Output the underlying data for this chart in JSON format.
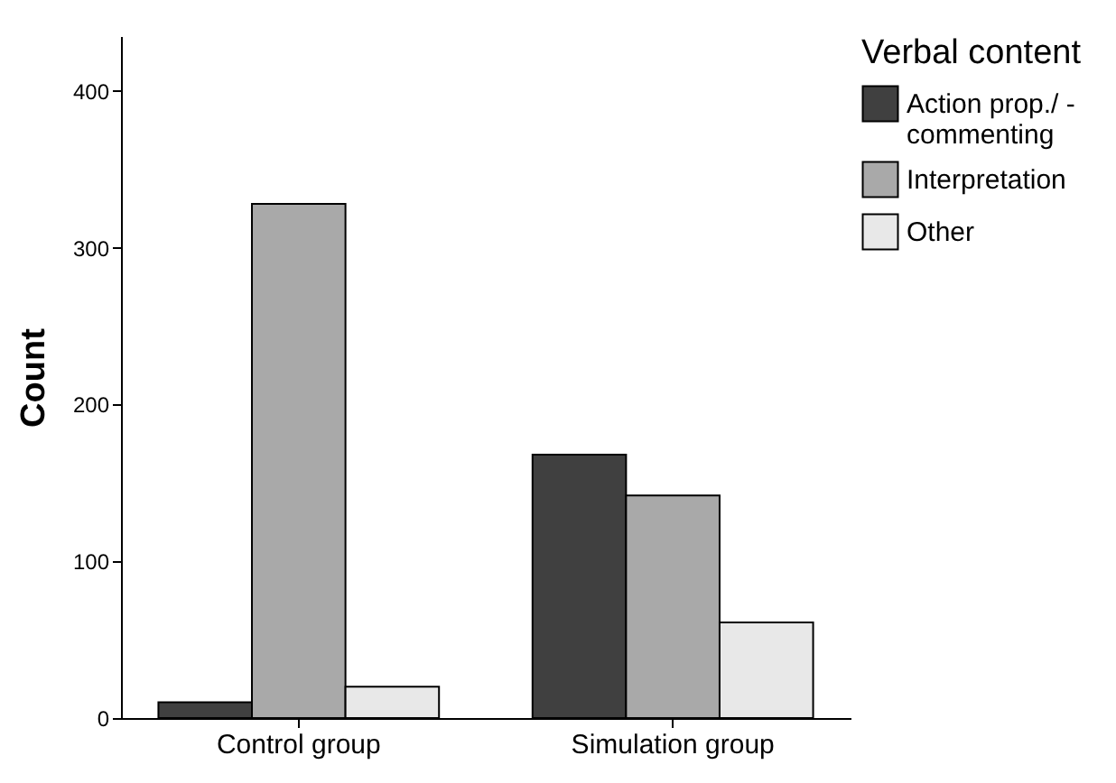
{
  "chart_data": {
    "type": "bar",
    "ylabel": "Count",
    "legend_title": "Verbal content",
    "categories": [
      "Control group",
      "Simulation group"
    ],
    "series": [
      {
        "name": "Action prop./ - commenting",
        "color": "#404040",
        "values": [
          10,
          168
        ]
      },
      {
        "name": "Interpretation",
        "color": "#a9a9a9",
        "values": [
          328,
          142
        ]
      },
      {
        "name": "Other",
        "color": "#e8e8e8",
        "values": [
          20,
          61
        ]
      }
    ],
    "ylim": [
      0,
      435
    ],
    "yticks": [
      0,
      100,
      200,
      300,
      400
    ],
    "grid": false,
    "legend": "right"
  }
}
